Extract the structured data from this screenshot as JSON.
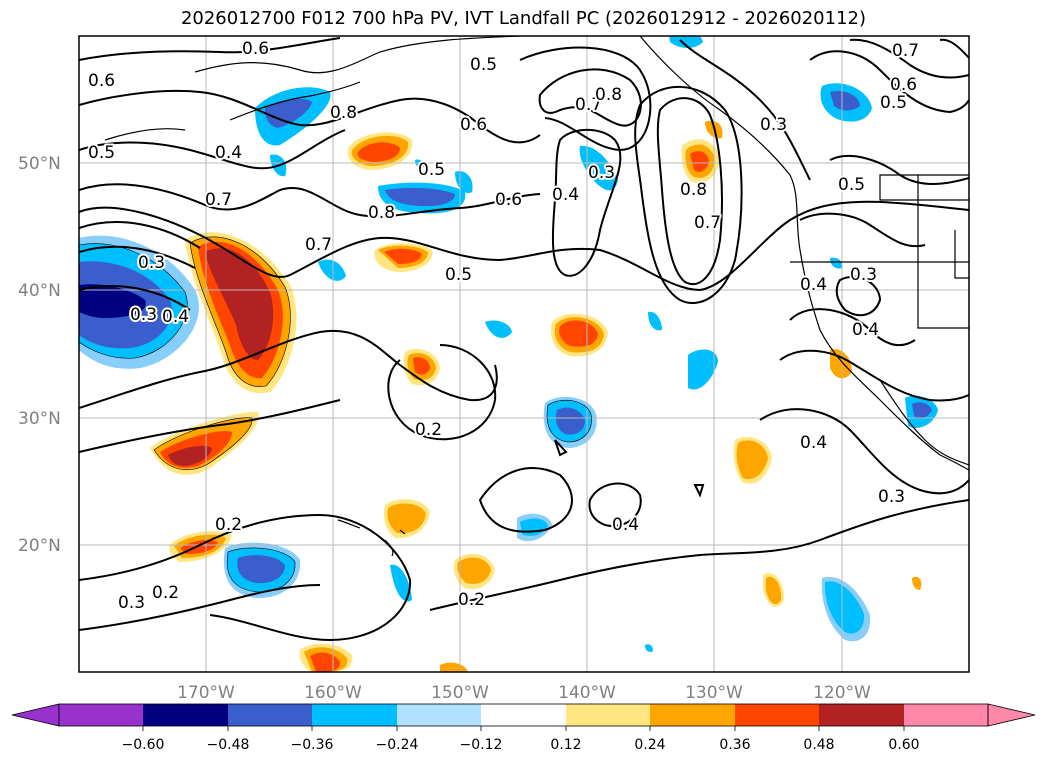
{
  "title": "2026012700 F012 700 hPa PV, IVT Landfall PC (2026012912 - 2026020112)",
  "map": {
    "lat_labels": [
      "50°N",
      "40°N",
      "30°N",
      "20°N"
    ],
    "lon_labels": [
      "170°W",
      "160°W",
      "150°W",
      "140°W",
      "130°W",
      "120°W"
    ],
    "contour_labels": [
      "0.6",
      "0.6",
      "0.5",
      "0.5",
      "0.4",
      "0.7",
      "0.8",
      "0.7",
      "0.6",
      "0.5",
      "0.8",
      "0.6",
      "0.5",
      "0.4",
      "0.3",
      "0.8",
      "0.7",
      "0.3",
      "0.7",
      "0.6",
      "0.5",
      "0.7",
      "0.3",
      "0.4",
      "0.3",
      "0.4",
      "0.3",
      "0.8",
      "0.5",
      "0.4",
      "0.2",
      "0.4",
      "0.3",
      "0.4",
      "0.2",
      "0.2",
      "0.3",
      "0.2"
    ]
  },
  "colorbar": {
    "ticks": [
      "−0.60",
      "−0.48",
      "−0.36",
      "−0.24",
      "−0.12",
      "0.12",
      "0.24",
      "0.36",
      "0.48",
      "0.60"
    ],
    "colors": [
      "#9932CC",
      "#000080",
      "#3A5FCD",
      "#00BFFF",
      "#B0E2FF",
      "#FFFFFF",
      "#FFE680",
      "#FFA500",
      "#FF4500",
      "#B22222",
      "#FF88AA"
    ]
  },
  "chart_data": {
    "type": "heatmap",
    "variable_contours": "700 hPa PV",
    "variable_shaded": "IVT Landfall PC",
    "lat_range": [
      "10°N",
      "60°N"
    ],
    "lon_range": [
      "180°W",
      "110°W"
    ],
    "contour_levels": [
      0.2,
      0.3,
      0.4,
      0.5,
      0.6,
      0.7,
      0.8
    ],
    "shading_levels": [
      -0.6,
      -0.48,
      -0.36,
      -0.24,
      -0.12,
      0.12,
      0.24,
      0.36,
      0.48,
      0.6
    ]
  }
}
